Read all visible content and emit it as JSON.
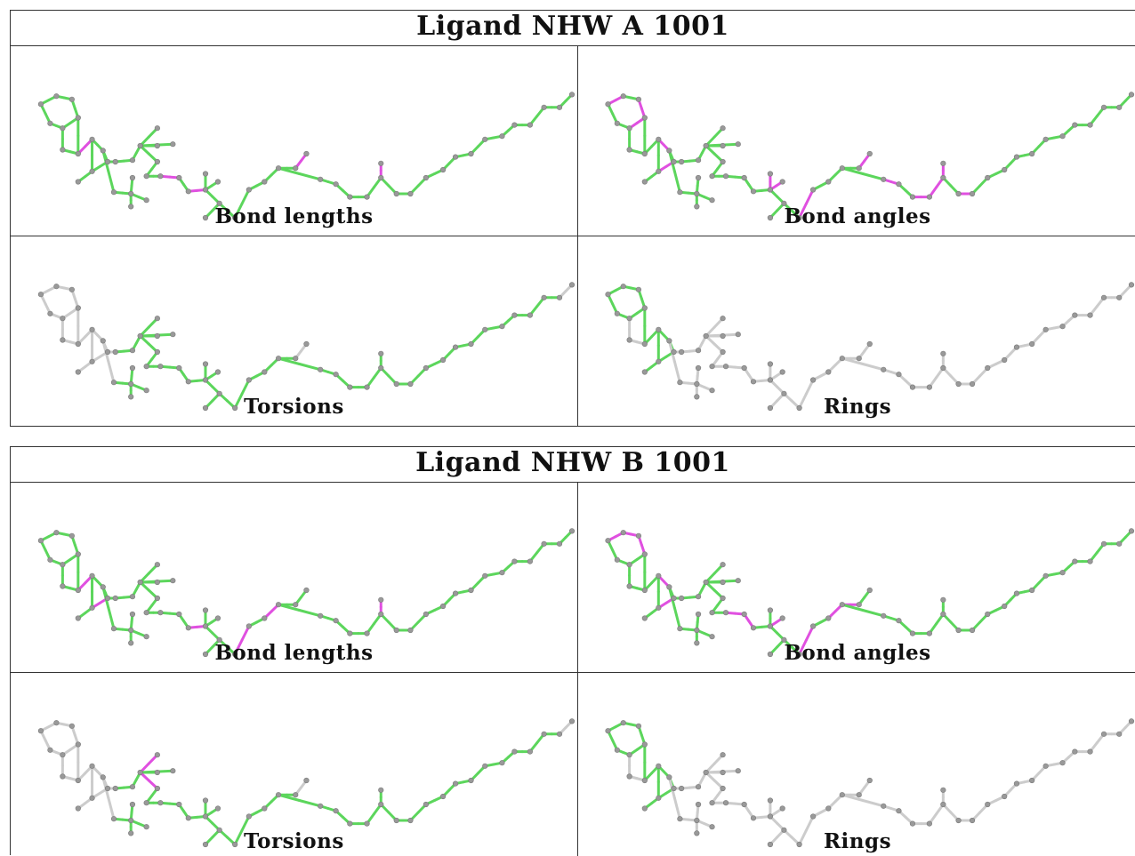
{
  "blocks": [
    {
      "title": "Ligand NHW A 1001",
      "panels": [
        {
          "caption": "Bond lengths",
          "mode": "lengthsA"
        },
        {
          "caption": "Bond angles",
          "mode": "anglesA"
        },
        {
          "caption": "Torsions",
          "mode": "torsionsA"
        },
        {
          "caption": "Rings",
          "mode": "rings"
        }
      ]
    },
    {
      "title": "Ligand NHW B 1001",
      "panels": [
        {
          "caption": "Bond lengths",
          "mode": "lengthsB"
        },
        {
          "caption": "Bond angles",
          "mode": "anglesB"
        },
        {
          "caption": "Torsions",
          "mode": "torsionsB"
        },
        {
          "caption": "Rings",
          "mode": "rings"
        }
      ]
    }
  ],
  "colors": {
    "ok": "#5cd65c",
    "outlier": "#e050e0",
    "neutral": "#cccccc",
    "atom": "#999999"
  }
}
